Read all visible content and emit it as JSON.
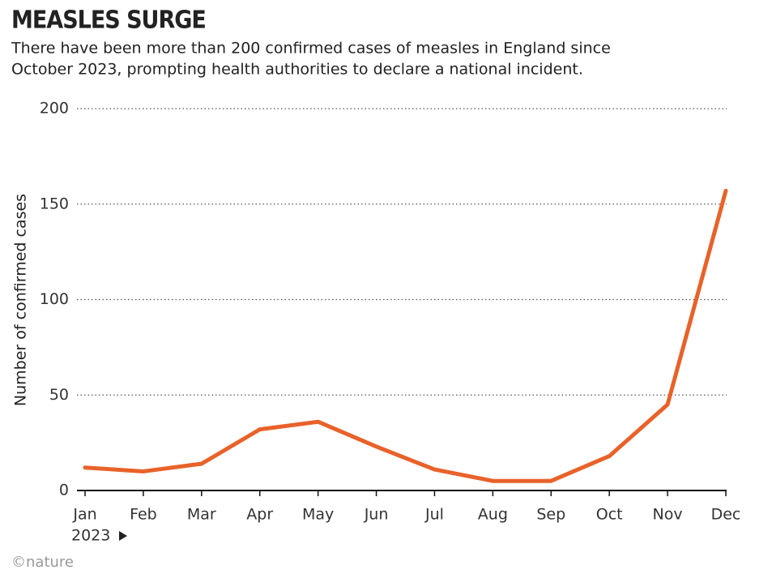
{
  "chart_data": {
    "type": "line",
    "title": "MEASLES SURGE",
    "subtitle_lines": [
      "There have been more than 200 confirmed cases of measles in England since",
      "October 2023, prompting health authorities to declare a national incident."
    ],
    "y_label": "Number of confirmed cases",
    "year_label": "2023",
    "source": "©nature",
    "categories": [
      "Jan",
      "Feb",
      "Mar",
      "Apr",
      "May",
      "Jun",
      "Jul",
      "Aug",
      "Sep",
      "Oct",
      "Nov",
      "Dec"
    ],
    "values": [
      12,
      10,
      14,
      32,
      36,
      23,
      11,
      5,
      5,
      18,
      45,
      157
    ],
    "color": "#e8622a",
    "ylim": [
      0,
      200
    ],
    "yticks": [
      0,
      50,
      100,
      150,
      200
    ],
    "grid": true
  }
}
